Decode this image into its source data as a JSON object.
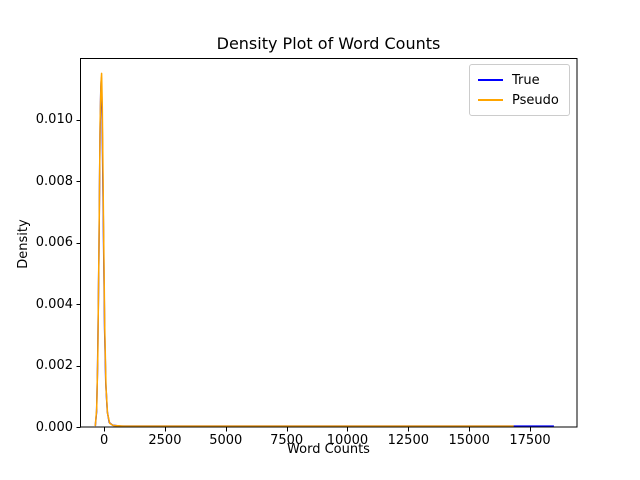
{
  "chart_data": {
    "type": "line",
    "title": "Density Plot of Word Counts",
    "xlabel": "Word Counts",
    "ylabel": "Density",
    "xlim": [
      -990,
      19430
    ],
    "ylim": [
      0,
      0.012
    ],
    "x_ticks": [
      0,
      2500,
      5000,
      7500,
      10000,
      12500,
      15000,
      17500
    ],
    "x_tick_labels": [
      "0",
      "2500",
      "5000",
      "7500",
      "10000",
      "12500",
      "15000",
      "17500"
    ],
    "y_ticks": [
      0.0,
      0.002,
      0.004,
      0.006,
      0.008,
      0.01
    ],
    "y_tick_labels": [
      "0.000",
      "0.002",
      "0.004",
      "0.006",
      "0.008",
      "0.010"
    ],
    "grid": false,
    "legend_position": "upper right",
    "peak_density": 0.0115,
    "series": [
      {
        "name": "True",
        "color": "#0000ff",
        "points": [
          [
            -360,
            3e-05
          ],
          [
            -310,
            0.0005
          ],
          [
            -265,
            0.002
          ],
          [
            -215,
            0.0055
          ],
          [
            -170,
            0.0095
          ],
          [
            -135,
            0.011
          ],
          [
            -112,
            0.01135
          ],
          [
            -80,
            0.0102
          ],
          [
            -30,
            0.0065
          ],
          [
            20,
            0.0032
          ],
          [
            70,
            0.0014
          ],
          [
            130,
            0.0005
          ],
          [
            210,
            0.00015
          ],
          [
            350,
            6e-05
          ],
          [
            700,
            3e-05
          ],
          [
            5000,
            3e-05
          ],
          [
            10000,
            3e-05
          ],
          [
            15000,
            3e-05
          ],
          [
            18480,
            3e-05
          ]
        ]
      },
      {
        "name": "Pseudo",
        "color": "#ffa500",
        "points": [
          [
            -360,
            3e-05
          ],
          [
            -305,
            0.0006
          ],
          [
            -258,
            0.0023
          ],
          [
            -208,
            0.006
          ],
          [
            -163,
            0.0099
          ],
          [
            -128,
            0.0112
          ],
          [
            -104,
            0.0115
          ],
          [
            -72,
            0.0104
          ],
          [
            -25,
            0.0067
          ],
          [
            25,
            0.0033
          ],
          [
            80,
            0.0013
          ],
          [
            140,
            0.00045
          ],
          [
            230,
            0.00012
          ],
          [
            380,
            5e-05
          ],
          [
            800,
            3e-05
          ],
          [
            5000,
            3e-05
          ],
          [
            10000,
            3e-05
          ],
          [
            14000,
            3e-05
          ],
          [
            16830,
            3e-05
          ]
        ]
      }
    ]
  }
}
